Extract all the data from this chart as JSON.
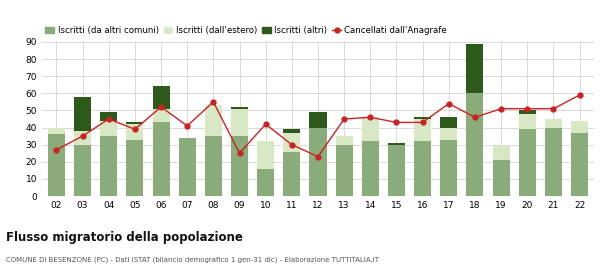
{
  "years": [
    "02",
    "03",
    "04",
    "05",
    "06",
    "07",
    "08",
    "09",
    "10",
    "11",
    "12",
    "13",
    "14",
    "15",
    "16",
    "17",
    "18",
    "19",
    "20",
    "21",
    "22"
  ],
  "iscritti_comuni": [
    36,
    30,
    35,
    33,
    43,
    34,
    35,
    35,
    16,
    26,
    40,
    30,
    32,
    30,
    32,
    33,
    60,
    21,
    39,
    40,
    37
  ],
  "iscritti_estero": [
    4,
    8,
    9,
    9,
    8,
    0,
    18,
    16,
    16,
    11,
    0,
    5,
    14,
    0,
    13,
    7,
    0,
    8,
    9,
    5,
    7
  ],
  "iscritti_altri": [
    0,
    20,
    5,
    1,
    13,
    0,
    0,
    1,
    0,
    2,
    9,
    0,
    0,
    1,
    1,
    6,
    29,
    0,
    2,
    0,
    0
  ],
  "cancellati": [
    27,
    35,
    45,
    39,
    52,
    41,
    55,
    25,
    42,
    30,
    23,
    45,
    46,
    43,
    43,
    54,
    46,
    51,
    51,
    51,
    59
  ],
  "color_comuni": "#8aab7a",
  "color_estero": "#d9e8c4",
  "color_altri": "#2d5a1b",
  "color_cancellati": "#cc2222",
  "ylim": [
    0,
    90
  ],
  "yticks": [
    0,
    10,
    20,
    30,
    40,
    50,
    60,
    70,
    80,
    90
  ],
  "title": "Flusso migratorio della popolazione",
  "subtitle": "COMUNE DI BESENZONE (PC) - Dati ISTAT (bilancio demografico 1 gen-31 dic) - Elaborazione TUTTITALIA.IT",
  "legend_labels": [
    "Iscritti (da altri comuni)",
    "Iscritti (dall'estero)",
    "Iscritti (altri)",
    "Cancellati dall'Anagrafe"
  ],
  "background_color": "#ffffff",
  "grid_color": "#cccccc"
}
